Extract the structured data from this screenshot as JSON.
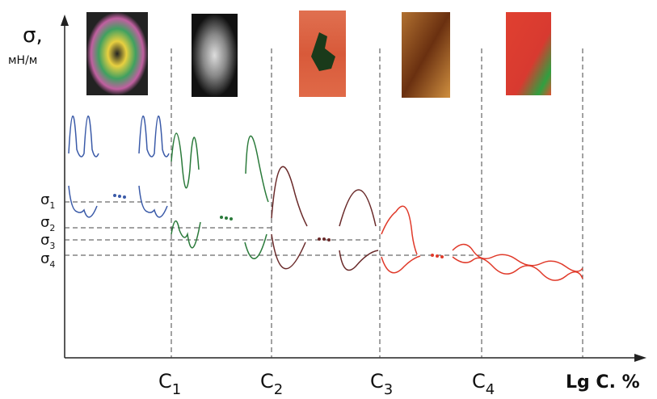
{
  "axis": {
    "y_label": "σ,",
    "y_unit": "мН/м",
    "x_label": "Lg C. %"
  },
  "levels": [
    {
      "symbol": "σ",
      "index": "1"
    },
    {
      "symbol": "σ",
      "index": "2"
    },
    {
      "symbol": "σ",
      "index": "3"
    },
    {
      "symbol": "σ",
      "index": "4"
    }
  ],
  "concentrations": [
    {
      "symbol": "C",
      "index": "1"
    },
    {
      "symbol": "C",
      "index": "2"
    },
    {
      "symbol": "C",
      "index": "3"
    },
    {
      "symbol": "C",
      "index": "4"
    }
  ]
}
